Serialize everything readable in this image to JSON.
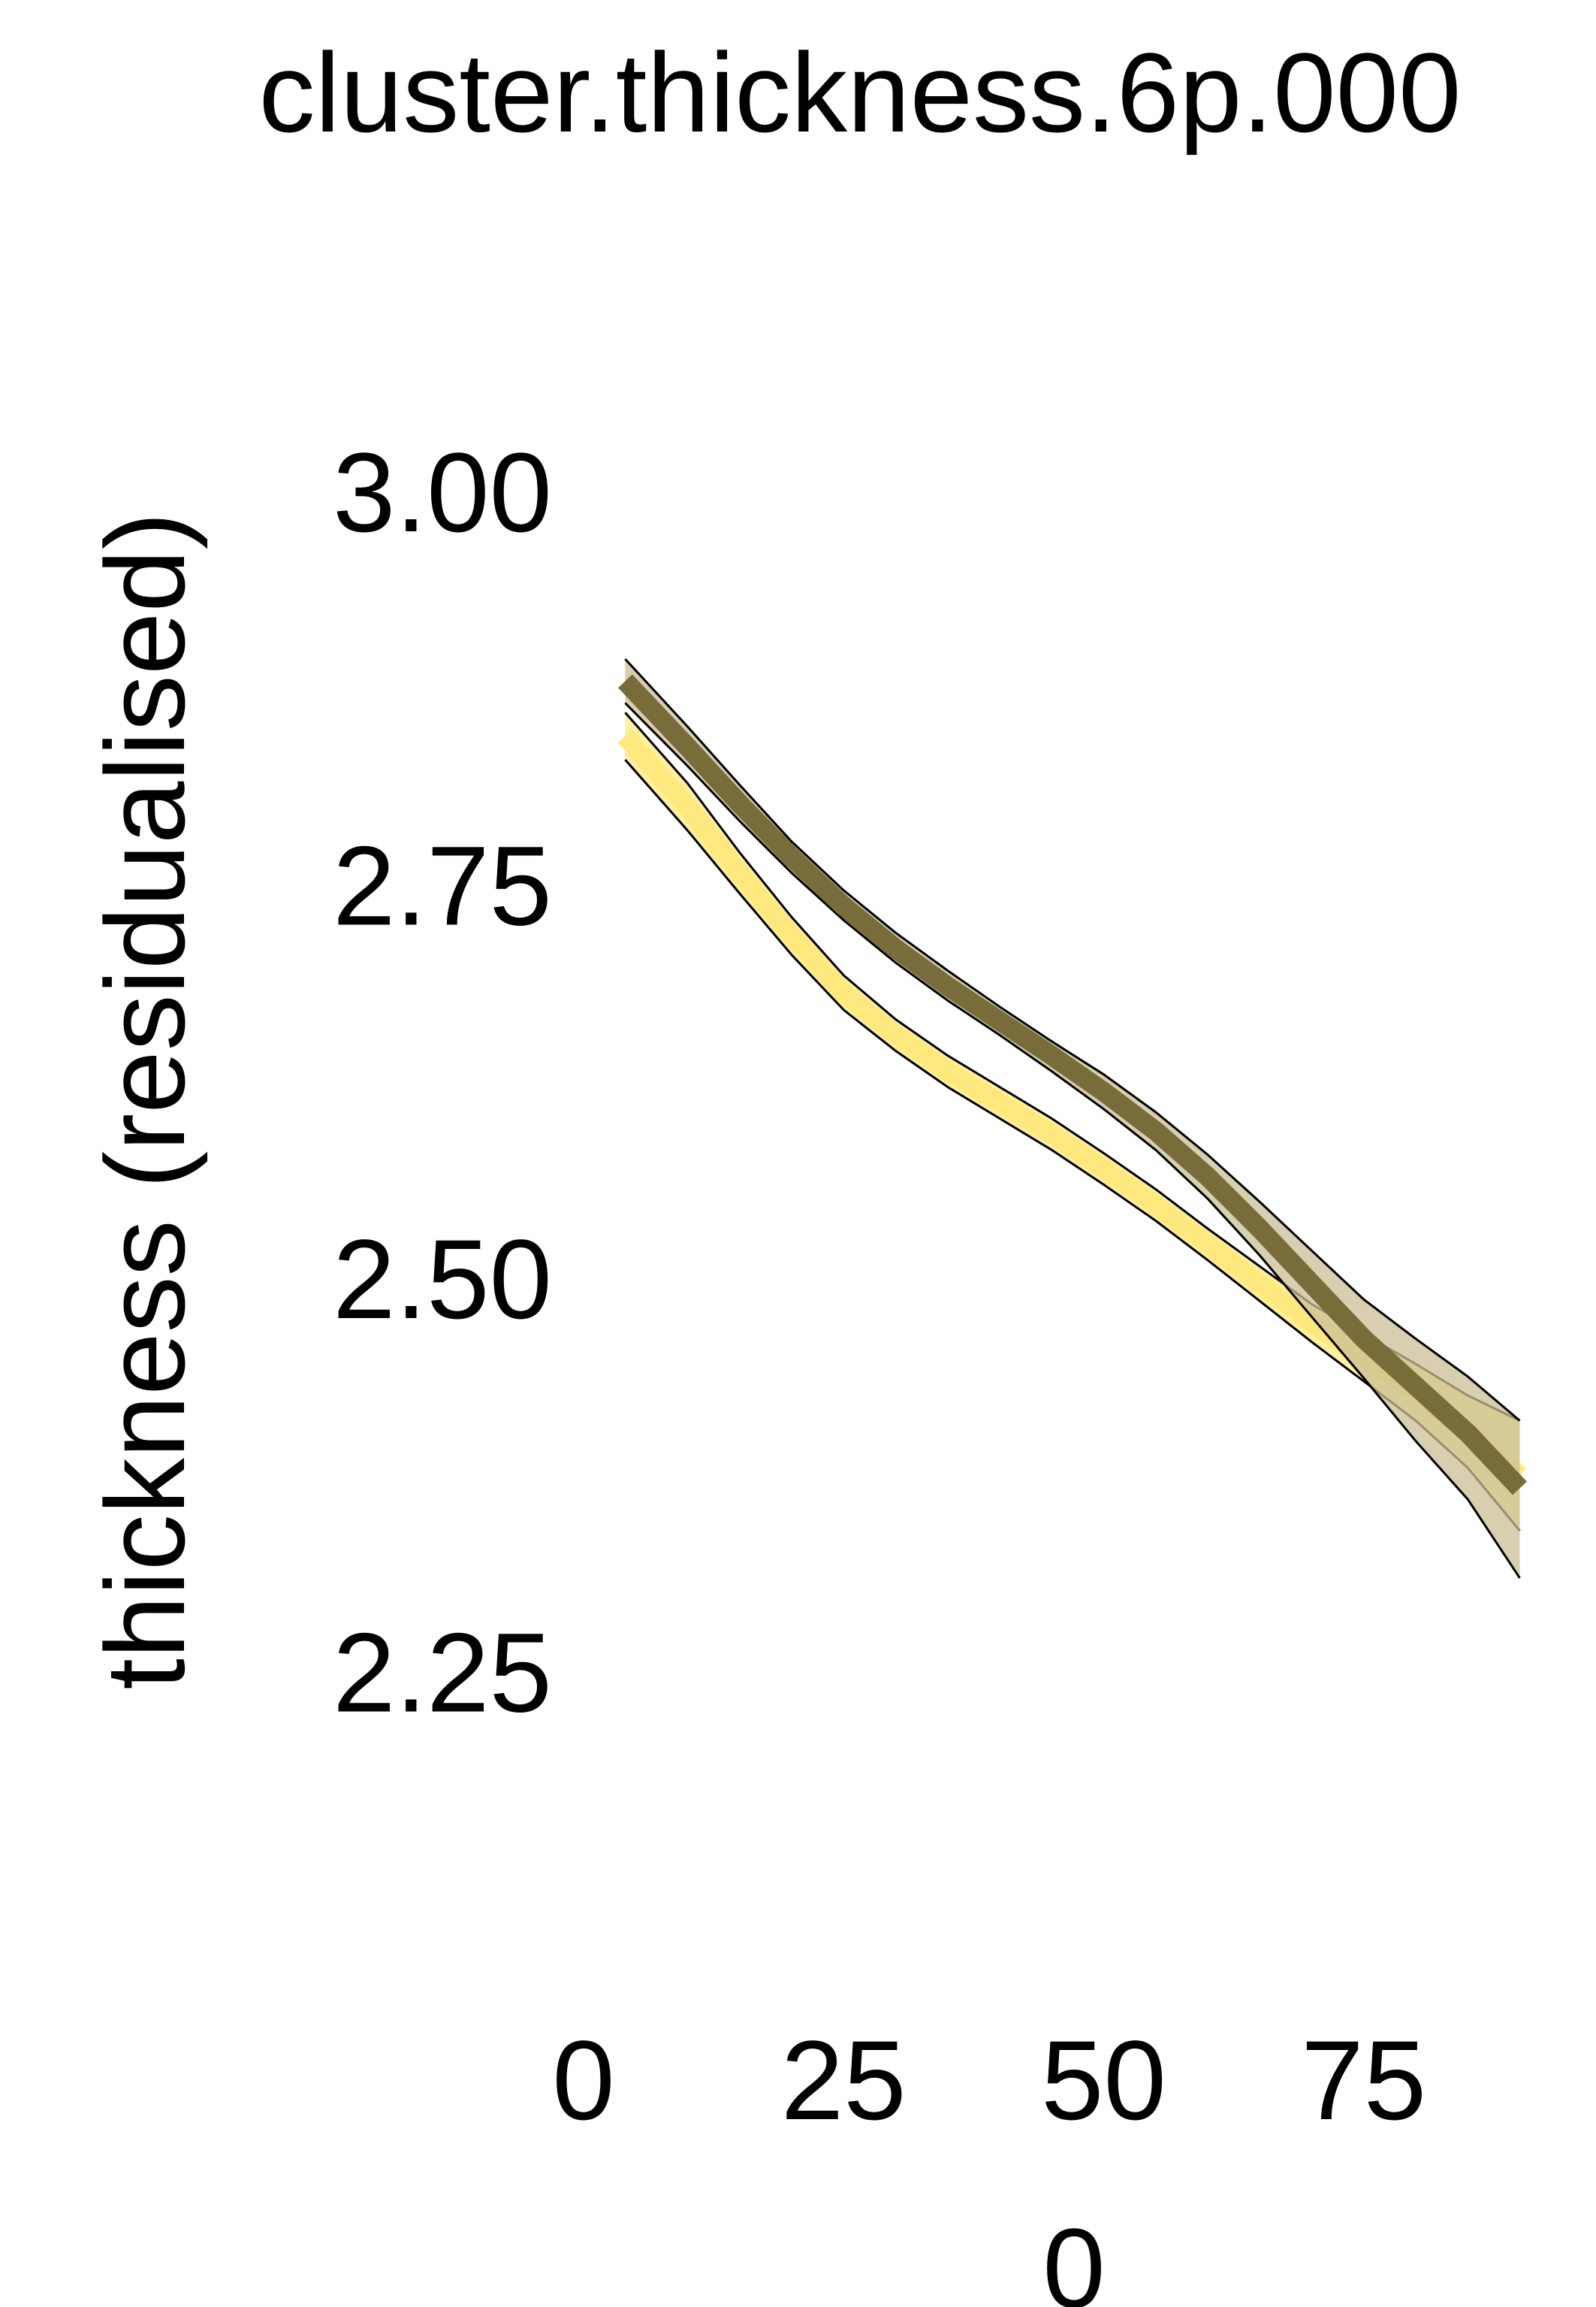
{
  "chart_data": {
    "type": "line",
    "title": "cluster.thickness.6p.000",
    "xlabel": "0",
    "ylabel": "thickness (residualised)",
    "xlim": [
      -2,
      90
    ],
    "ylim": [
      2.1,
      3.1
    ],
    "x_ticks": [
      0,
      25,
      50,
      75
    ],
    "x_tick_labels": [
      "0",
      "25",
      "50",
      "75"
    ],
    "y_ticks": [
      3.0,
      2.75,
      2.5,
      2.25
    ],
    "y_tick_labels": [
      "3.00",
      "2.75",
      "2.50",
      "2.25"
    ],
    "grid": false,
    "series": [
      {
        "color": "#ffe97f",
        "band_color": "#ffe97f",
        "x": [
          4,
          10,
          15,
          20,
          25,
          30,
          35,
          40,
          45,
          50,
          55,
          60,
          65,
          70,
          75,
          80,
          85,
          90
        ],
        "y": [
          2.845,
          2.8,
          2.758,
          2.718,
          2.682,
          2.655,
          2.632,
          2.612,
          2.592,
          2.57,
          2.547,
          2.522,
          2.497,
          2.472,
          2.45,
          2.428,
          2.403,
          2.375
        ],
        "lower": [
          2.83,
          2.785,
          2.745,
          2.706,
          2.671,
          2.645,
          2.622,
          2.602,
          2.582,
          2.56,
          2.537,
          2.512,
          2.486,
          2.46,
          2.435,
          2.41,
          2.38,
          2.34
        ],
        "upper": [
          2.86,
          2.815,
          2.771,
          2.73,
          2.693,
          2.665,
          2.642,
          2.622,
          2.602,
          2.58,
          2.557,
          2.532,
          2.508,
          2.484,
          2.465,
          2.446,
          2.426,
          2.41
        ]
      },
      {
        "color": "#786c3b",
        "band_color": "#c9bf96",
        "x": [
          4,
          10,
          15,
          20,
          25,
          30,
          35,
          40,
          45,
          50,
          55,
          60,
          65,
          70,
          75,
          80,
          85,
          90
        ],
        "y": [
          2.88,
          2.838,
          2.802,
          2.768,
          2.737,
          2.71,
          2.686,
          2.664,
          2.642,
          2.619,
          2.594,
          2.565,
          2.532,
          2.497,
          2.462,
          2.432,
          2.402,
          2.367
        ],
        "lower": [
          2.866,
          2.826,
          2.791,
          2.758,
          2.728,
          2.701,
          2.677,
          2.655,
          2.632,
          2.608,
          2.582,
          2.551,
          2.515,
          2.476,
          2.437,
          2.397,
          2.36,
          2.31
        ],
        "upper": [
          2.894,
          2.851,
          2.814,
          2.778,
          2.747,
          2.72,
          2.696,
          2.673,
          2.651,
          2.63,
          2.606,
          2.579,
          2.549,
          2.518,
          2.487,
          2.462,
          2.438,
          2.41
        ]
      }
    ]
  }
}
